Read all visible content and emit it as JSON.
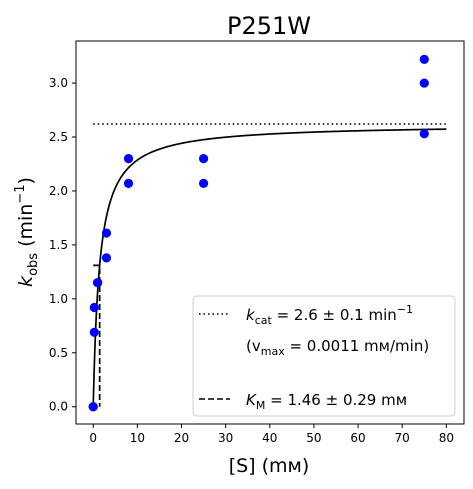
{
  "chart_data": {
    "type": "scatter",
    "title": "P251W",
    "xlabel": "[S] (mм)",
    "ylabel_main": "k",
    "ylabel_sub": "obs",
    "ylabel_unit_open": " (min",
    "ylabel_unit_sup": "−1",
    "ylabel_unit_close": ")",
    "xlim": [
      -3.9,
      84.0
    ],
    "ylim": [
      -0.16,
      3.39
    ],
    "xticks": [
      0,
      10,
      20,
      30,
      40,
      50,
      60,
      70,
      80
    ],
    "yticks": [
      0.0,
      0.5,
      1.0,
      1.5,
      2.0,
      2.5,
      3.0
    ],
    "xtick_labels": [
      "0",
      "10",
      "20",
      "30",
      "40",
      "50",
      "60",
      "70",
      "80"
    ],
    "ytick_labels": [
      "0.0",
      "0.5",
      "1.0",
      "1.5",
      "2.0",
      "2.5",
      "3.0"
    ],
    "grid": false,
    "legend_position": "lower-right",
    "colors": {
      "points": "#0000ff",
      "lines": "#000000"
    },
    "series": [
      {
        "kind": "scatter",
        "points": [
          [
            0,
            0.0
          ],
          [
            0,
            0.0
          ],
          [
            0.25,
            0.69
          ],
          [
            0.25,
            0.92
          ],
          [
            1,
            1.15
          ],
          [
            1,
            1.15
          ],
          [
            3,
            1.61
          ],
          [
            3,
            1.38
          ],
          [
            8,
            2.07
          ],
          [
            8,
            2.3
          ],
          [
            25,
            2.07
          ],
          [
            25,
            2.3
          ],
          [
            75,
            2.53
          ],
          [
            75,
            3.0
          ],
          [
            75,
            3.22
          ]
        ]
      },
      {
        "kind": "fit",
        "kcat": 2.62,
        "km": 1.46,
        "x_range": [
          0,
          80
        ]
      },
      {
        "kind": "hline",
        "y": 2.62,
        "x_range": [
          0,
          80
        ],
        "style": "dotted"
      },
      {
        "kind": "km-marker",
        "x": 1.46,
        "y": 1.31,
        "style": "dashed"
      }
    ],
    "legend": [
      {
        "style": "dotted",
        "main": "k",
        "sub": "cat",
        "rest": " = 2.6 ± 0.1 min",
        "sup": "−1"
      },
      {
        "style": "none",
        "open": "(v",
        "sub": "max",
        "rest": " = 0.0011 mм/min)"
      },
      {
        "style": "none",
        "blank": true
      },
      {
        "style": "dashed",
        "main": "K",
        "sub": "M",
        "rest": " = 1.46 ± 0.29 mм"
      }
    ]
  }
}
